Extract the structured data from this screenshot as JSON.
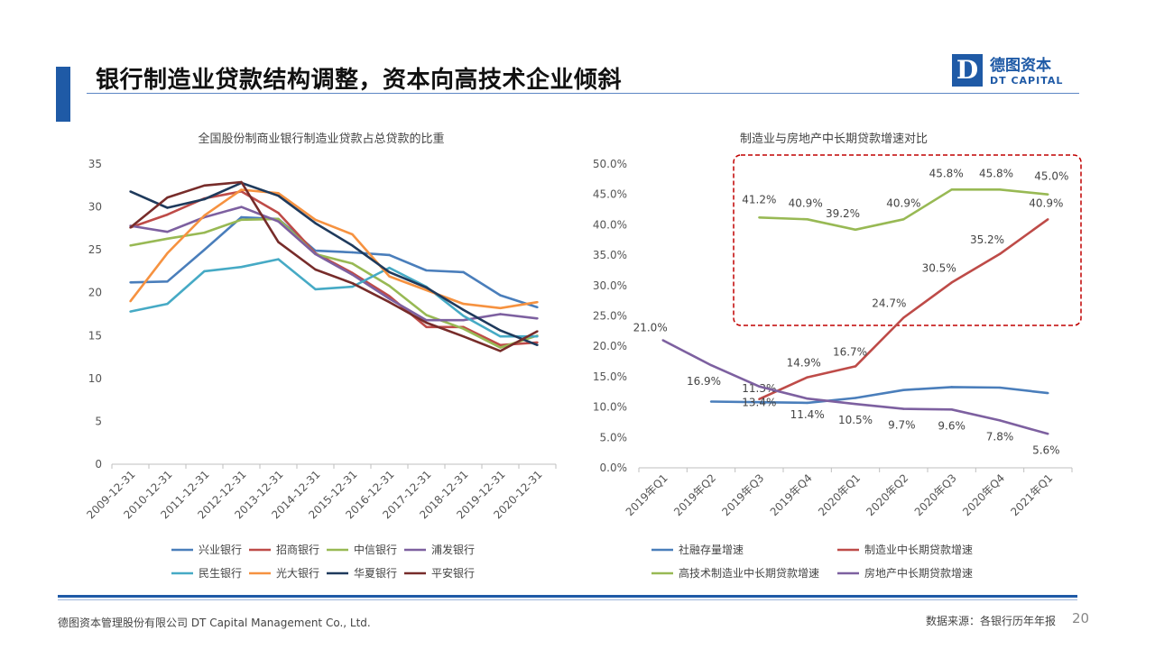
{
  "header": {
    "title": "银行制造业贷款结构调整，资本向高技术企业倾斜",
    "logo_cn": "德图资本",
    "logo_en": "DT CAPITAL",
    "logo_mark": "D",
    "brand_color": "#1f5aa6"
  },
  "footer": {
    "company": "德图资本管理股份有限公司  DT Capital Management  Co., Ltd.",
    "source": "数据来源：各银行历年年报",
    "page_number": "20"
  },
  "chart_data": [
    {
      "type": "line",
      "title": "全国股份制商业银行制造业贷款占总贷款的比重",
      "xlabel": "",
      "ylabel": "",
      "ylim": [
        0,
        35
      ],
      "yticks": [
        0,
        5,
        10,
        15,
        20,
        25,
        30,
        35
      ],
      "grid": false,
      "legend_position": "bottom",
      "categories": [
        "2009-12-31",
        "2010-12-31",
        "2011-12-31",
        "2012-12-31",
        "2013-12-31",
        "2014-12-31",
        "2015-12-31",
        "2016-12-31",
        "2017-12-31",
        "2018-12-31",
        "2019-12-31",
        "2020-12-31"
      ],
      "series": [
        {
          "name": "兴业银行",
          "color": "#4a7ebb",
          "values": [
            21.2,
            21.3,
            25.0,
            28.8,
            28.6,
            24.9,
            24.7,
            24.4,
            22.6,
            22.4,
            19.7,
            18.3
          ]
        },
        {
          "name": "招商银行",
          "color": "#be4b48",
          "values": [
            27.6,
            29.1,
            31.0,
            31.8,
            29.3,
            24.6,
            22.3,
            19.6,
            16.0,
            16.0,
            13.9,
            14.2
          ]
        },
        {
          "name": "中信银行",
          "color": "#98b954",
          "values": [
            25.5,
            26.3,
            27.0,
            28.5,
            28.6,
            24.5,
            23.4,
            20.8,
            17.4,
            15.8,
            13.6,
            15.0
          ]
        },
        {
          "name": "浦发银行",
          "color": "#7d60a0",
          "values": [
            27.8,
            27.1,
            28.8,
            30.0,
            28.3,
            24.5,
            22.1,
            19.3,
            16.8,
            16.8,
            17.5,
            17.0
          ]
        },
        {
          "name": "民生银行",
          "color": "#46aac5",
          "values": [
            17.8,
            18.7,
            22.5,
            23.0,
            23.9,
            20.4,
            20.7,
            22.9,
            20.7,
            17.3,
            14.9,
            14.9
          ]
        },
        {
          "name": "光大银行",
          "color": "#f69240",
          "values": [
            19.0,
            24.6,
            29.0,
            32.0,
            31.6,
            28.5,
            26.8,
            21.9,
            20.3,
            18.7,
            18.2,
            18.9
          ]
        },
        {
          "name": "华夏银行",
          "color": "#1f3a5c",
          "values": [
            31.8,
            29.9,
            30.9,
            32.8,
            31.3,
            28.1,
            25.5,
            22.4,
            20.6,
            18.0,
            15.6,
            13.9
          ]
        },
        {
          "name": "平安银行",
          "color": "#772c2a",
          "values": [
            27.6,
            31.1,
            32.5,
            32.9,
            25.9,
            22.7,
            21.1,
            18.9,
            16.5,
            14.9,
            13.2,
            15.5
          ]
        }
      ]
    },
    {
      "type": "line",
      "title": "制造业与房地产中长期贷款增速对比",
      "xlabel": "",
      "ylabel": "",
      "ylim": [
        0,
        50
      ],
      "yticks": [
        0,
        5,
        10,
        15,
        20,
        25,
        30,
        35,
        40,
        45,
        50
      ],
      "ytick_labels": [
        "0.0%",
        "5.0%",
        "10.0%",
        "15.0%",
        "20.0%",
        "25.0%",
        "30.0%",
        "35.0%",
        "40.0%",
        "45.0%",
        "50.0%"
      ],
      "grid": false,
      "legend_position": "bottom",
      "annotation": "dashed red box around 制造业中长期贷款增速 and 高技术制造业中长期贷款增速 upper values",
      "annotation_color": "#c00000",
      "categories": [
        "2019年Q1",
        "2019年Q2",
        "2019年Q3",
        "2019年Q4",
        "2020年Q1",
        "2020年Q2",
        "2020年Q3",
        "2020年Q4",
        "2021年Q1"
      ],
      "series": [
        {
          "name": "社融存量增速",
          "color": "#4a7ebb",
          "values": [
            null,
            10.9,
            10.8,
            10.7,
            11.5,
            12.8,
            13.3,
            13.2,
            12.3
          ],
          "labels": []
        },
        {
          "name": "制造业中长期贷款增速",
          "color": "#be4b48",
          "values": [
            null,
            null,
            11.3,
            14.9,
            16.7,
            24.7,
            30.5,
            35.2,
            40.9
          ],
          "labels": [
            "",
            "",
            "11.3%",
            "14.9%",
            "16.7%",
            "24.7%",
            "30.5%",
            "35.2%",
            "40.9%"
          ]
        },
        {
          "name": "高技术制造业中长期贷款增速",
          "color": "#98b954",
          "values": [
            null,
            null,
            41.2,
            40.9,
            39.2,
            40.9,
            45.8,
            45.8,
            45.0
          ],
          "labels": [
            "",
            "",
            "41.2%",
            "40.9%",
            "39.2%",
            "40.9%",
            "45.8%",
            "45.8%",
            "45.0%"
          ]
        },
        {
          "name": "房地产中长期贷款增速",
          "color": "#7d60a0",
          "values": [
            21.0,
            16.9,
            13.4,
            11.4,
            10.5,
            9.7,
            9.6,
            7.8,
            5.6
          ],
          "labels": [
            "21.0%",
            "16.9%",
            "13.4%",
            "11.4%",
            "10.5%",
            "9.7%",
            "9.6%",
            "7.8%",
            "5.6%"
          ]
        }
      ]
    }
  ]
}
